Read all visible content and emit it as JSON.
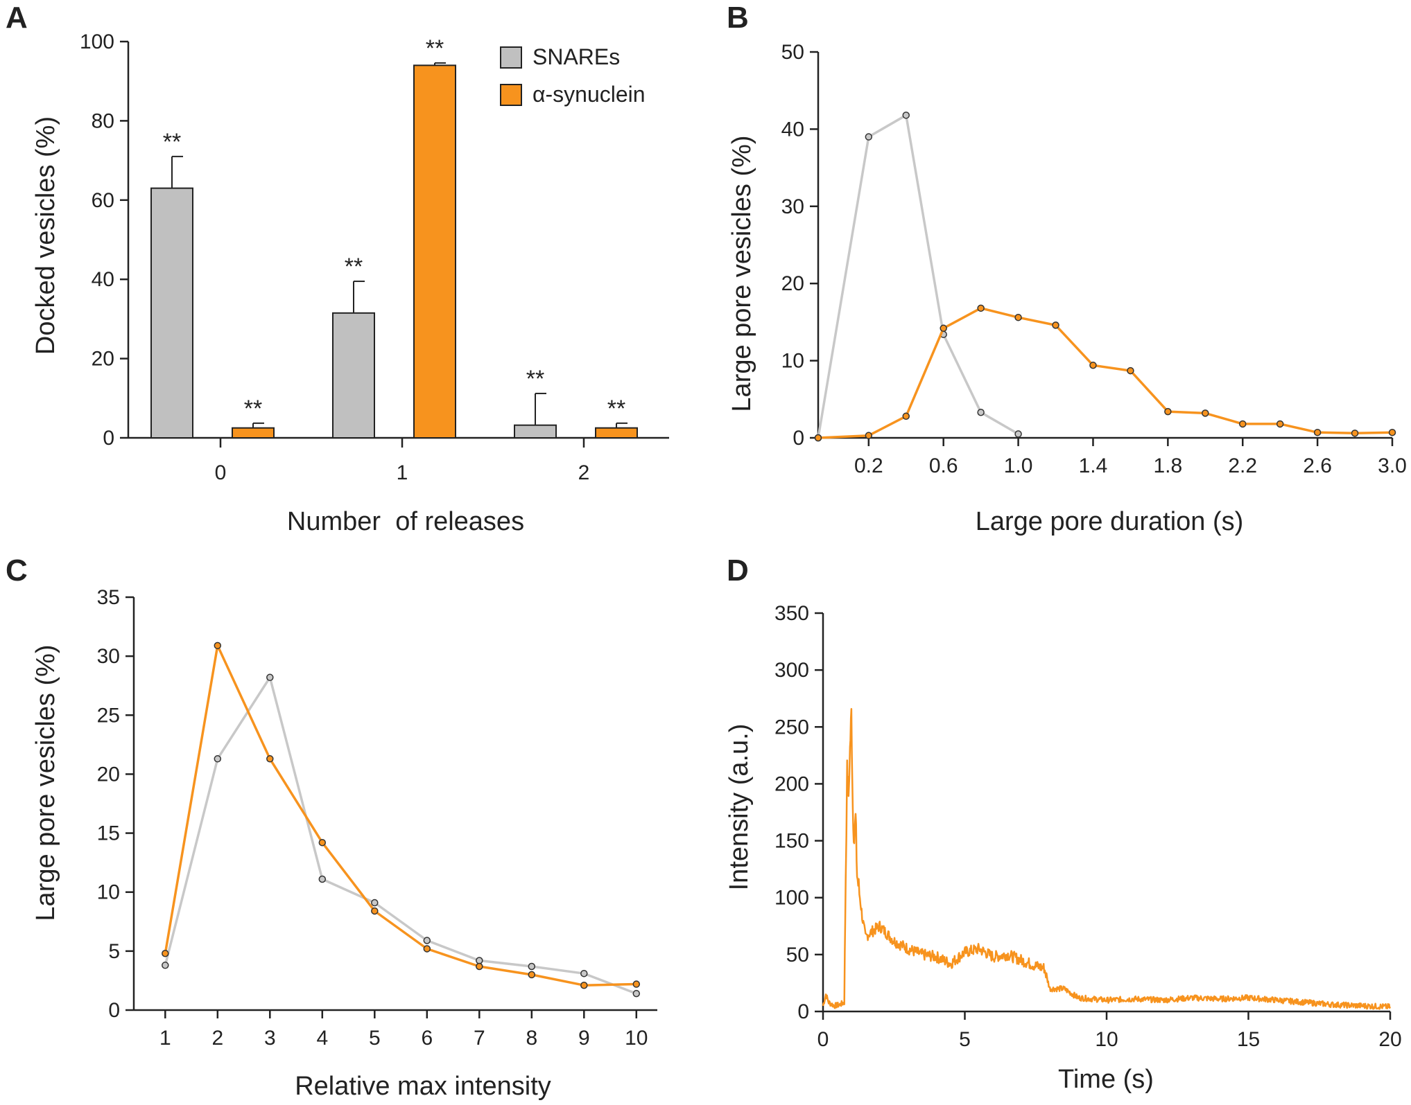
{
  "colors": {
    "snare": "#c0c0c0",
    "snare_line": "#c8c8c8",
    "syn": "#f7931e",
    "axis": "#222222"
  },
  "chart_data": [
    {
      "panel": "A",
      "type": "bar",
      "categories": [
        "0",
        "1",
        "2"
      ],
      "series": [
        {
          "name": "SNAREs",
          "values": [
            63,
            31.5,
            3.2
          ],
          "errors": [
            8,
            8,
            8
          ],
          "annotations": [
            "**",
            "**",
            "**"
          ]
        },
        {
          "name": "α-synuclein",
          "values": [
            2.5,
            94,
            2.5
          ],
          "errors": [
            1.2,
            0.6,
            1.2
          ],
          "annotations": [
            "**",
            "**",
            "**"
          ]
        }
      ],
      "xlabel": "Number  of releases",
      "ylabel": "Docked vesicles (%)",
      "ylim": [
        0,
        100
      ],
      "yticks": [
        "0",
        "20",
        "40",
        "60",
        "80",
        "100"
      ],
      "legend": [
        "SNAREs",
        "α-synuclein"
      ]
    },
    {
      "panel": "B",
      "type": "line",
      "series": [
        {
          "name": "SNAREs",
          "x": [
            -0.07,
            0.2,
            0.4,
            0.6,
            0.8,
            1.0
          ],
          "values": [
            0,
            39,
            41.8,
            13.4,
            3.3,
            0.5
          ]
        },
        {
          "name": "α-synuclein",
          "x": [
            -0.07,
            0.2,
            0.4,
            0.6,
            0.8,
            1.0,
            1.2,
            1.4,
            1.6,
            1.8,
            2.0,
            2.2,
            2.4,
            2.6,
            2.8,
            3.0
          ],
          "values": [
            0,
            0.3,
            2.8,
            14.2,
            16.8,
            15.6,
            14.6,
            9.4,
            8.7,
            3.4,
            3.2,
            1.8,
            1.8,
            0.7,
            0.6,
            0.7
          ]
        }
      ],
      "xlabel": "Large pore duration (s)",
      "ylabel": "Large pore vesicles (%)",
      "xlim": [
        -0.07,
        3.0
      ],
      "ylim": [
        0,
        50
      ],
      "xticks": [
        "0.2",
        "0.6",
        "1.0",
        "1.4",
        "1.8",
        "2.2",
        "2.6",
        "3.0"
      ],
      "yticks": [
        "0",
        "10",
        "20",
        "30",
        "40",
        "50"
      ]
    },
    {
      "panel": "C",
      "type": "line",
      "series": [
        {
          "name": "SNAREs",
          "x": [
            1,
            2,
            3,
            4,
            5,
            6,
            7,
            8,
            9,
            10
          ],
          "values": [
            3.8,
            21.3,
            28.2,
            11.1,
            9.1,
            5.9,
            4.2,
            3.7,
            3.1,
            1.4
          ]
        },
        {
          "name": "α-synuclein",
          "x": [
            1,
            2,
            3,
            4,
            5,
            6,
            7,
            8,
            9,
            10
          ],
          "values": [
            4.8,
            30.9,
            21.3,
            14.2,
            8.4,
            5.2,
            3.7,
            3.0,
            2.1,
            2.2
          ]
        }
      ],
      "xlabel": "Relative max intensity",
      "ylabel": "Large pore vesicles (%)",
      "xlim": [
        0.4,
        10.4
      ],
      "ylim": [
        0,
        35
      ],
      "xticks": [
        "1",
        "2",
        "3",
        "4",
        "5",
        "6",
        "7",
        "8",
        "9",
        "10"
      ],
      "yticks": [
        "0",
        "5",
        "10",
        "15",
        "20",
        "25",
        "30",
        "35"
      ]
    },
    {
      "panel": "D",
      "type": "line",
      "series": [
        {
          "name": "α-synuclein",
          "x": [
            0,
            0.1,
            0.2,
            0.4,
            0.6,
            0.75,
            0.8,
            0.85,
            0.9,
            0.95,
            1.0,
            1.05,
            1.1,
            1.15,
            1.2,
            1.3,
            1.4,
            1.5,
            1.6,
            2.0,
            2.5,
            3.0,
            3.5,
            4.0,
            4.5,
            5.0,
            5.5,
            6.0,
            6.5,
            7.0,
            7.5,
            7.8,
            8.0,
            8.5,
            9.0,
            10,
            11,
            12,
            13,
            14,
            15,
            16,
            17,
            18,
            19,
            20
          ],
          "values": [
            5,
            15,
            8,
            5,
            6,
            8,
            120,
            210,
            190,
            230,
            262,
            180,
            150,
            170,
            120,
            100,
            80,
            65,
            68,
            75,
            62,
            55,
            50,
            48,
            42,
            52,
            55,
            48,
            50,
            45,
            40,
            38,
            20,
            20,
            12,
            10,
            11,
            10,
            12,
            11,
            12,
            10,
            8,
            6,
            5,
            4
          ]
        }
      ],
      "xlabel": "Time (s)",
      "ylabel": "Intensity (a.u.)",
      "xlim": [
        0,
        20
      ],
      "ylim": [
        0,
        350
      ],
      "xticks": [
        "0",
        "5",
        "10",
        "15",
        "20"
      ],
      "yticks": [
        "0",
        "50",
        "100",
        "150",
        "200",
        "250",
        "300",
        "350"
      ]
    }
  ]
}
